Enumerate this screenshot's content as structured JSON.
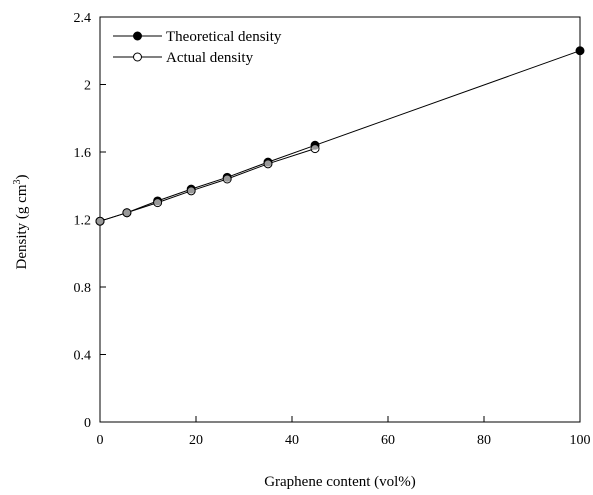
{
  "chart_data": {
    "type": "line",
    "xlabel": "Graphene content (vol%)",
    "ylabel": "Density (g cm",
    "ylabel_sup": "3",
    "ylabel_close": ")",
    "xlim": [
      0,
      100
    ],
    "ylim": [
      0,
      2.4
    ],
    "xticks": [
      "0",
      "20",
      "40",
      "60",
      "80",
      "100"
    ],
    "yticks": [
      "0",
      "0.4",
      "0.8",
      "1.2",
      "1.6",
      "2",
      "2.4"
    ],
    "grid": false,
    "legend_position": "top-left",
    "series": [
      {
        "name": "Theoretical density",
        "marker": "filled-circle",
        "x": [
          0,
          5.6,
          12,
          19,
          26.5,
          35,
          44.8,
          100
        ],
        "y": [
          1.19,
          1.24,
          1.31,
          1.38,
          1.45,
          1.54,
          1.64,
          2.2
        ]
      },
      {
        "name": "Actual density",
        "marker": "open-circle",
        "x": [
          0,
          5.6,
          12,
          19,
          26.5,
          35,
          44.8
        ],
        "y": [
          1.19,
          1.24,
          1.3,
          1.37,
          1.44,
          1.53,
          1.62
        ]
      }
    ]
  }
}
